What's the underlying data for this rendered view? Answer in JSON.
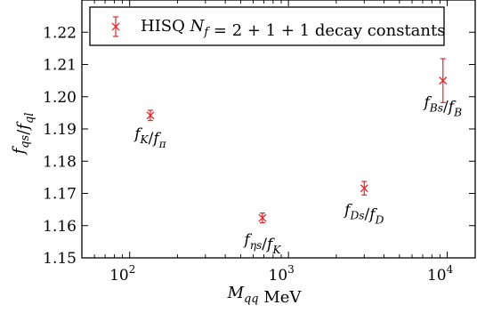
{
  "chart_data": {
    "type": "scatter",
    "title": "",
    "xlabel": "M_qq MeV",
    "ylabel": "f_qs/f_ql",
    "xscale": "log",
    "xlim": [
      50,
      15000
    ],
    "ylim": [
      1.15,
      1.23
    ],
    "grid": false,
    "legend_position": "top-right",
    "x_ticks": [
      {
        "value": 100,
        "label": "10^2"
      },
      {
        "value": 1000,
        "label": "10^3"
      },
      {
        "value": 10000,
        "label": "10^4"
      }
    ],
    "y_ticks": [
      1.15,
      1.16,
      1.17,
      1.18,
      1.19,
      1.2,
      1.21,
      1.22
    ],
    "series": [
      {
        "name": "HISQ N_f = 2+1+1 decay constants",
        "color": "#e0262b",
        "marker": "x",
        "points": [
          {
            "x": 135,
            "y": 1.1942,
            "err": 0.0016,
            "label": "f_K/f_π"
          },
          {
            "x": 686,
            "y": 1.1624,
            "err": 0.0015,
            "label": "f_ηs/f_K"
          },
          {
            "x": 3000,
            "y": 1.1716,
            "err": 0.0021,
            "label": "f_Ds/f_D"
          },
          {
            "x": 9400,
            "y": 1.205,
            "err": 0.0068,
            "label": "f_Bs/f_B"
          }
        ]
      }
    ]
  }
}
